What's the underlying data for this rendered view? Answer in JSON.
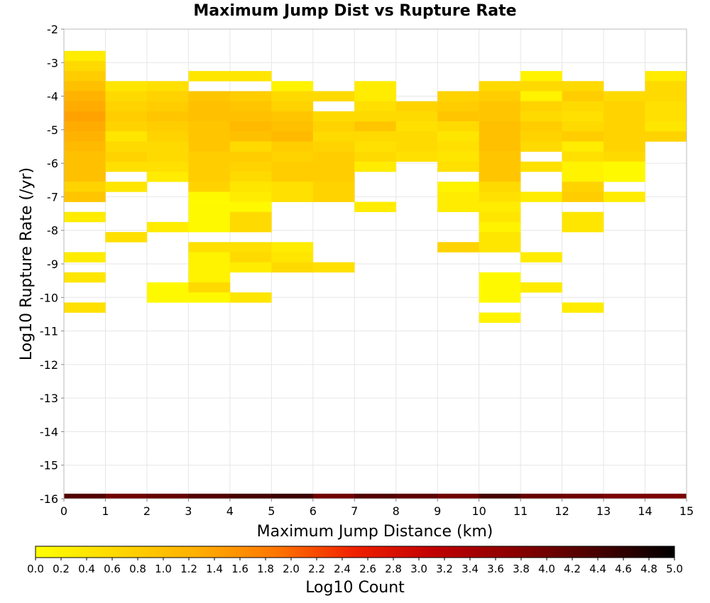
{
  "chart_data": {
    "type": "heatmap",
    "title": "Maximum Jump Dist vs Rupture Rate",
    "xlabel": "Maximum Jump Distance (km)",
    "ylabel": "Log10 Rupture Rate (/yr)",
    "xlim": [
      0,
      15
    ],
    "ylim": [
      -16,
      -2
    ],
    "x_ticks": [
      "0",
      "1",
      "2",
      "3",
      "4",
      "5",
      "6",
      "7",
      "8",
      "9",
      "10",
      "11",
      "12",
      "13",
      "14",
      "15"
    ],
    "y_ticks": [
      "-2",
      "-3",
      "-4",
      "-5",
      "-6",
      "-7",
      "-8",
      "-9",
      "-10",
      "-11",
      "-12",
      "-13",
      "-14",
      "-15",
      "-16"
    ],
    "grid": true,
    "bin_width": 1,
    "bin_height": 0.3,
    "colorbar": {
      "label": "Log10 Count",
      "range": [
        0,
        5
      ],
      "ticks": [
        "0.0",
        "0.2",
        "0.4",
        "0.6",
        "0.8",
        "1.0",
        "1.2",
        "1.4",
        "1.6",
        "1.8",
        "2.0",
        "2.2",
        "2.4",
        "2.6",
        "2.8",
        "3.0",
        "3.2",
        "3.4",
        "3.6",
        "3.8",
        "4.0",
        "4.2",
        "4.4",
        "4.6",
        "4.8",
        "5.0"
      ],
      "colors": [
        "#ffff00",
        "#ffd800",
        "#ffb000",
        "#ff7700",
        "#f02000",
        "#c00000",
        "#8a0000",
        "#4a0000",
        "#000000"
      ]
    },
    "cells": [
      {
        "x": 0.5,
        "y": -2.8,
        "v": 0.3
      },
      {
        "x": 0.5,
        "y": -3.1,
        "v": 0.6
      },
      {
        "x": 0.5,
        "y": -3.4,
        "v": 0.8
      },
      {
        "x": 0.5,
        "y": -3.7,
        "v": 1.0
      },
      {
        "x": 0.5,
        "y": -4.0,
        "v": 1.2
      },
      {
        "x": 0.5,
        "y": -4.3,
        "v": 1.3
      },
      {
        "x": 0.5,
        "y": -4.6,
        "v": 1.4
      },
      {
        "x": 0.5,
        "y": -4.9,
        "v": 1.3
      },
      {
        "x": 0.5,
        "y": -5.2,
        "v": 1.2
      },
      {
        "x": 0.5,
        "y": -5.5,
        "v": 1.1
      },
      {
        "x": 0.5,
        "y": -5.8,
        "v": 1.0
      },
      {
        "x": 0.5,
        "y": -6.1,
        "v": 1.0
      },
      {
        "x": 0.5,
        "y": -6.4,
        "v": 1.0
      },
      {
        "x": 0.5,
        "y": -6.7,
        "v": 0.7
      },
      {
        "x": 0.5,
        "y": -7.0,
        "v": 0.9
      },
      {
        "x": 0.5,
        "y": -7.6,
        "v": 0.3
      },
      {
        "x": 0.5,
        "y": -8.8,
        "v": 0.3
      },
      {
        "x": 0.5,
        "y": -9.4,
        "v": 0.4
      },
      {
        "x": 0.5,
        "y": -10.3,
        "v": 0.5
      },
      {
        "x": 1.5,
        "y": -3.7,
        "v": 0.4
      },
      {
        "x": 1.5,
        "y": -4.0,
        "v": 0.6
      },
      {
        "x": 1.5,
        "y": -4.3,
        "v": 0.7
      },
      {
        "x": 1.5,
        "y": -4.6,
        "v": 0.8
      },
      {
        "x": 1.5,
        "y": -4.9,
        "v": 0.7
      },
      {
        "x": 1.5,
        "y": -5.2,
        "v": 0.4
      },
      {
        "x": 1.5,
        "y": -5.5,
        "v": 0.6
      },
      {
        "x": 1.5,
        "y": -5.8,
        "v": 0.7
      },
      {
        "x": 1.5,
        "y": -6.1,
        "v": 0.5
      },
      {
        "x": 1.5,
        "y": -6.7,
        "v": 0.4
      },
      {
        "x": 1.5,
        "y": -8.2,
        "v": 0.5
      },
      {
        "x": 2.5,
        "y": -3.7,
        "v": 0.5
      },
      {
        "x": 2.5,
        "y": -4.0,
        "v": 0.7
      },
      {
        "x": 2.5,
        "y": -4.3,
        "v": 0.8
      },
      {
        "x": 2.5,
        "y": -4.6,
        "v": 0.9
      },
      {
        "x": 2.5,
        "y": -4.9,
        "v": 0.8
      },
      {
        "x": 2.5,
        "y": -5.2,
        "v": 0.7
      },
      {
        "x": 2.5,
        "y": -5.5,
        "v": 0.6
      },
      {
        "x": 2.5,
        "y": -5.8,
        "v": 0.6
      },
      {
        "x": 2.5,
        "y": -6.1,
        "v": 0.5
      },
      {
        "x": 2.5,
        "y": -6.4,
        "v": 0.3
      },
      {
        "x": 2.5,
        "y": -7.9,
        "v": 0.3
      },
      {
        "x": 2.5,
        "y": -9.7,
        "v": 0.1
      },
      {
        "x": 2.5,
        "y": -10.0,
        "v": 0.1
      },
      {
        "x": 3.5,
        "y": -3.4,
        "v": 0.4
      },
      {
        "x": 3.5,
        "y": -4.0,
        "v": 0.9
      },
      {
        "x": 3.5,
        "y": -4.3,
        "v": 1.0
      },
      {
        "x": 3.5,
        "y": -4.6,
        "v": 1.0
      },
      {
        "x": 3.5,
        "y": -4.9,
        "v": 0.9
      },
      {
        "x": 3.5,
        "y": -5.2,
        "v": 0.9
      },
      {
        "x": 3.5,
        "y": -5.5,
        "v": 0.9
      },
      {
        "x": 3.5,
        "y": -5.8,
        "v": 0.8
      },
      {
        "x": 3.5,
        "y": -6.1,
        "v": 0.8
      },
      {
        "x": 3.5,
        "y": -6.4,
        "v": 0.8
      },
      {
        "x": 3.5,
        "y": -6.7,
        "v": 0.7
      },
      {
        "x": 3.5,
        "y": -7.0,
        "v": 0.1
      },
      {
        "x": 3.5,
        "y": -7.3,
        "v": 0.1
      },
      {
        "x": 3.5,
        "y": -7.6,
        "v": 0.1
      },
      {
        "x": 3.5,
        "y": -7.9,
        "v": 0.1
      },
      {
        "x": 3.5,
        "y": -8.5,
        "v": 0.5
      },
      {
        "x": 3.5,
        "y": -8.8,
        "v": 0.2
      },
      {
        "x": 3.5,
        "y": -9.1,
        "v": 0.2
      },
      {
        "x": 3.5,
        "y": -9.4,
        "v": 0.2
      },
      {
        "x": 3.5,
        "y": -9.7,
        "v": 0.6
      },
      {
        "x": 3.5,
        "y": -10.0,
        "v": 0.1
      },
      {
        "x": 4.5,
        "y": -3.4,
        "v": 0.4
      },
      {
        "x": 4.5,
        "y": -4.0,
        "v": 0.8
      },
      {
        "x": 4.5,
        "y": -4.3,
        "v": 0.9
      },
      {
        "x": 4.5,
        "y": -4.6,
        "v": 1.0
      },
      {
        "x": 4.5,
        "y": -4.9,
        "v": 1.1
      },
      {
        "x": 4.5,
        "y": -5.2,
        "v": 1.0
      },
      {
        "x": 4.5,
        "y": -5.5,
        "v": 0.6
      },
      {
        "x": 4.5,
        "y": -5.8,
        "v": 0.8
      },
      {
        "x": 4.5,
        "y": -6.1,
        "v": 0.7
      },
      {
        "x": 4.5,
        "y": -6.4,
        "v": 0.6
      },
      {
        "x": 4.5,
        "y": -6.7,
        "v": 0.4
      },
      {
        "x": 4.5,
        "y": -7.0,
        "v": 0.3
      },
      {
        "x": 4.5,
        "y": -7.3,
        "v": 0.1
      },
      {
        "x": 4.5,
        "y": -7.6,
        "v": 0.6
      },
      {
        "x": 4.5,
        "y": -7.9,
        "v": 0.6
      },
      {
        "x": 4.5,
        "y": -8.5,
        "v": 0.5
      },
      {
        "x": 4.5,
        "y": -8.8,
        "v": 0.6
      },
      {
        "x": 4.5,
        "y": -9.1,
        "v": 0.3
      },
      {
        "x": 4.5,
        "y": -10.0,
        "v": 0.4
      },
      {
        "x": 5.5,
        "y": -3.7,
        "v": 0.2
      },
      {
        "x": 5.5,
        "y": -4.0,
        "v": 0.6
      },
      {
        "x": 5.5,
        "y": -4.3,
        "v": 0.7
      },
      {
        "x": 5.5,
        "y": -4.6,
        "v": 0.9
      },
      {
        "x": 5.5,
        "y": -4.9,
        "v": 1.0
      },
      {
        "x": 5.5,
        "y": -5.2,
        "v": 1.1
      },
      {
        "x": 5.5,
        "y": -5.5,
        "v": 0.8
      },
      {
        "x": 5.5,
        "y": -5.8,
        "v": 0.7
      },
      {
        "x": 5.5,
        "y": -6.1,
        "v": 0.8
      },
      {
        "x": 5.5,
        "y": -6.4,
        "v": 0.8
      },
      {
        "x": 5.5,
        "y": -6.7,
        "v": 0.5
      },
      {
        "x": 5.5,
        "y": -7.0,
        "v": 0.5
      },
      {
        "x": 5.5,
        "y": -8.5,
        "v": 0.3
      },
      {
        "x": 5.5,
        "y": -8.8,
        "v": 0.4
      },
      {
        "x": 5.5,
        "y": -9.1,
        "v": 0.6
      },
      {
        "x": 6.5,
        "y": -4.0,
        "v": 0.6
      },
      {
        "x": 6.5,
        "y": -4.6,
        "v": 0.6
      },
      {
        "x": 6.5,
        "y": -4.9,
        "v": 0.7
      },
      {
        "x": 6.5,
        "y": -5.2,
        "v": 0.6
      },
      {
        "x": 6.5,
        "y": -5.5,
        "v": 0.7
      },
      {
        "x": 6.5,
        "y": -5.8,
        "v": 0.8
      },
      {
        "x": 6.5,
        "y": -6.1,
        "v": 0.8
      },
      {
        "x": 6.5,
        "y": -6.4,
        "v": 0.8
      },
      {
        "x": 6.5,
        "y": -6.7,
        "v": 0.7
      },
      {
        "x": 6.5,
        "y": -7.0,
        "v": 0.7
      },
      {
        "x": 6.5,
        "y": -9.1,
        "v": 0.5
      },
      {
        "x": 7.5,
        "y": -3.7,
        "v": 0.3
      },
      {
        "x": 7.5,
        "y": -4.0,
        "v": 0.3
      },
      {
        "x": 7.5,
        "y": -4.3,
        "v": 0.5
      },
      {
        "x": 7.5,
        "y": -4.6,
        "v": 0.6
      },
      {
        "x": 7.5,
        "y": -4.9,
        "v": 0.9
      },
      {
        "x": 7.5,
        "y": -5.2,
        "v": 0.6
      },
      {
        "x": 7.5,
        "y": -5.5,
        "v": 0.5
      },
      {
        "x": 7.5,
        "y": -5.8,
        "v": 0.6
      },
      {
        "x": 7.5,
        "y": -6.1,
        "v": 0.3
      },
      {
        "x": 7.5,
        "y": -7.3,
        "v": 0.3
      },
      {
        "x": 8.5,
        "y": -4.3,
        "v": 0.7
      },
      {
        "x": 8.5,
        "y": -4.6,
        "v": 0.6
      },
      {
        "x": 8.5,
        "y": -4.9,
        "v": 0.5
      },
      {
        "x": 8.5,
        "y": -5.2,
        "v": 0.6
      },
      {
        "x": 8.5,
        "y": -5.5,
        "v": 0.6
      },
      {
        "x": 8.5,
        "y": -5.8,
        "v": 0.5
      },
      {
        "x": 9.5,
        "y": -4.0,
        "v": 0.7
      },
      {
        "x": 9.5,
        "y": -4.3,
        "v": 0.8
      },
      {
        "x": 9.5,
        "y": -4.6,
        "v": 0.9
      },
      {
        "x": 9.5,
        "y": -4.9,
        "v": 0.6
      },
      {
        "x": 9.5,
        "y": -5.2,
        "v": 0.4
      },
      {
        "x": 9.5,
        "y": -5.5,
        "v": 0.5
      },
      {
        "x": 9.5,
        "y": -5.8,
        "v": 0.4
      },
      {
        "x": 9.5,
        "y": -6.1,
        "v": 0.5
      },
      {
        "x": 9.5,
        "y": -6.7,
        "v": 0.2
      },
      {
        "x": 9.5,
        "y": -7.0,
        "v": 0.3
      },
      {
        "x": 9.5,
        "y": -7.3,
        "v": 0.3
      },
      {
        "x": 9.5,
        "y": -8.5,
        "v": 0.7
      },
      {
        "x": 10.5,
        "y": -3.7,
        "v": 0.6
      },
      {
        "x": 10.5,
        "y": -4.0,
        "v": 0.8
      },
      {
        "x": 10.5,
        "y": -4.3,
        "v": 0.9
      },
      {
        "x": 10.5,
        "y": -4.6,
        "v": 0.9
      },
      {
        "x": 10.5,
        "y": -4.9,
        "v": 1.0
      },
      {
        "x": 10.5,
        "y": -5.2,
        "v": 1.0
      },
      {
        "x": 10.5,
        "y": -5.5,
        "v": 1.0
      },
      {
        "x": 10.5,
        "y": -5.8,
        "v": 0.9
      },
      {
        "x": 10.5,
        "y": -6.1,
        "v": 0.9
      },
      {
        "x": 10.5,
        "y": -6.4,
        "v": 0.9
      },
      {
        "x": 10.5,
        "y": -6.7,
        "v": 0.6
      },
      {
        "x": 10.5,
        "y": -7.0,
        "v": 0.5
      },
      {
        "x": 10.5,
        "y": -7.3,
        "v": 0.3
      },
      {
        "x": 10.5,
        "y": -7.6,
        "v": 0.4
      },
      {
        "x": 10.5,
        "y": -7.9,
        "v": 0.2
      },
      {
        "x": 10.5,
        "y": -8.2,
        "v": 0.4
      },
      {
        "x": 10.5,
        "y": -8.5,
        "v": 0.4
      },
      {
        "x": 10.5,
        "y": -9.4,
        "v": 0.1
      },
      {
        "x": 10.5,
        "y": -9.7,
        "v": 0.1
      },
      {
        "x": 10.5,
        "y": -10.0,
        "v": 0.1
      },
      {
        "x": 10.5,
        "y": -10.6,
        "v": 0.2
      },
      {
        "x": 11.5,
        "y": -3.4,
        "v": 0.2
      },
      {
        "x": 11.5,
        "y": -3.7,
        "v": 0.6
      },
      {
        "x": 11.5,
        "y": -4.0,
        "v": 0.2
      },
      {
        "x": 11.5,
        "y": -4.3,
        "v": 0.7
      },
      {
        "x": 11.5,
        "y": -4.6,
        "v": 0.6
      },
      {
        "x": 11.5,
        "y": -4.9,
        "v": 0.8
      },
      {
        "x": 11.5,
        "y": -5.2,
        "v": 0.7
      },
      {
        "x": 11.5,
        "y": -5.5,
        "v": 0.6
      },
      {
        "x": 11.5,
        "y": -6.1,
        "v": 0.5
      },
      {
        "x": 11.5,
        "y": -7.0,
        "v": 0.3
      },
      {
        "x": 11.5,
        "y": -8.8,
        "v": 0.3
      },
      {
        "x": 11.5,
        "y": -9.7,
        "v": 0.3
      },
      {
        "x": 12.5,
        "y": -3.7,
        "v": 0.6
      },
      {
        "x": 12.5,
        "y": -4.0,
        "v": 0.8
      },
      {
        "x": 12.5,
        "y": -4.3,
        "v": 0.6
      },
      {
        "x": 12.5,
        "y": -4.6,
        "v": 0.5
      },
      {
        "x": 12.5,
        "y": -4.9,
        "v": 0.6
      },
      {
        "x": 12.5,
        "y": -5.2,
        "v": 0.8
      },
      {
        "x": 12.5,
        "y": -5.5,
        "v": 0.3
      },
      {
        "x": 12.5,
        "y": -5.8,
        "v": 0.5
      },
      {
        "x": 12.5,
        "y": -6.1,
        "v": 0.2
      },
      {
        "x": 12.5,
        "y": -6.4,
        "v": 0.2
      },
      {
        "x": 12.5,
        "y": -6.7,
        "v": 0.7
      },
      {
        "x": 12.5,
        "y": -7.0,
        "v": 0.8
      },
      {
        "x": 12.5,
        "y": -7.6,
        "v": 0.4
      },
      {
        "x": 12.5,
        "y": -7.9,
        "v": 0.4
      },
      {
        "x": 12.5,
        "y": -10.3,
        "v": 0.3
      },
      {
        "x": 13.5,
        "y": -4.0,
        "v": 0.6
      },
      {
        "x": 13.5,
        "y": -4.3,
        "v": 0.7
      },
      {
        "x": 13.5,
        "y": -4.6,
        "v": 0.7
      },
      {
        "x": 13.5,
        "y": -4.9,
        "v": 0.7
      },
      {
        "x": 13.5,
        "y": -5.2,
        "v": 0.7
      },
      {
        "x": 13.5,
        "y": -5.5,
        "v": 0.7
      },
      {
        "x": 13.5,
        "y": -5.8,
        "v": 0.6
      },
      {
        "x": 13.5,
        "y": -6.1,
        "v": 0.1
      },
      {
        "x": 13.5,
        "y": -6.4,
        "v": 0.1
      },
      {
        "x": 13.5,
        "y": -7.0,
        "v": 0.3
      },
      {
        "x": 14.5,
        "y": -3.4,
        "v": 0.3
      },
      {
        "x": 14.5,
        "y": -3.7,
        "v": 0.6
      },
      {
        "x": 14.5,
        "y": -4.0,
        "v": 0.6
      },
      {
        "x": 14.5,
        "y": -4.3,
        "v": 0.5
      },
      {
        "x": 14.5,
        "y": -4.6,
        "v": 0.5
      },
      {
        "x": 14.5,
        "y": -4.9,
        "v": 0.4
      },
      {
        "x": 14.5,
        "y": -5.2,
        "v": 0.7
      }
    ],
    "bottom_band": {
      "y": -16,
      "values": [
        4.3,
        4.0,
        4.1,
        4.3,
        4.4,
        4.5,
        4.0,
        4.3,
        4.2,
        4.0,
        4.4,
        4.1,
        4.0,
        3.9,
        3.9
      ]
    }
  }
}
